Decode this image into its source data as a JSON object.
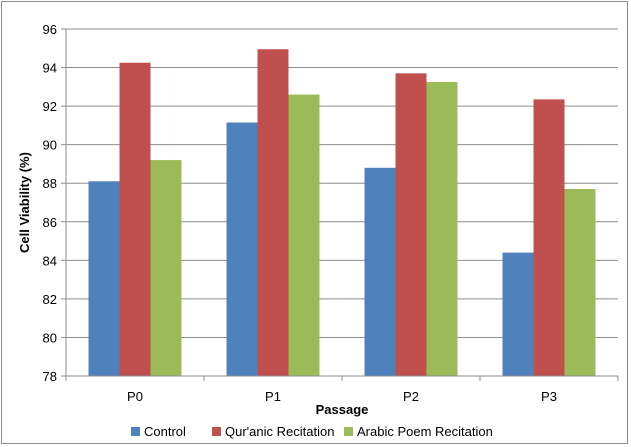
{
  "chart_data": {
    "type": "bar",
    "title": "",
    "xlabel": "Passage",
    "ylabel": "Cell Viability (%)",
    "categories": [
      "P0",
      "P1",
      "P2",
      "P3"
    ],
    "series": [
      {
        "name": "Control",
        "color": "#4f81bd",
        "values": [
          88.1,
          91.15,
          88.8,
          84.4
        ]
      },
      {
        "name": "Qur'anic Recitation",
        "color": "#c0504d",
        "values": [
          94.25,
          94.95,
          93.7,
          92.35
        ]
      },
      {
        "name": "Arabic Poem Recitation",
        "color": "#9bbb59",
        "values": [
          89.2,
          92.6,
          93.25,
          87.7
        ]
      }
    ],
    "ylim": [
      78,
      96
    ],
    "yticks": [
      78,
      80,
      82,
      84,
      86,
      88,
      90,
      92,
      94,
      96
    ],
    "grid": true,
    "legend_position": "bottom"
  }
}
